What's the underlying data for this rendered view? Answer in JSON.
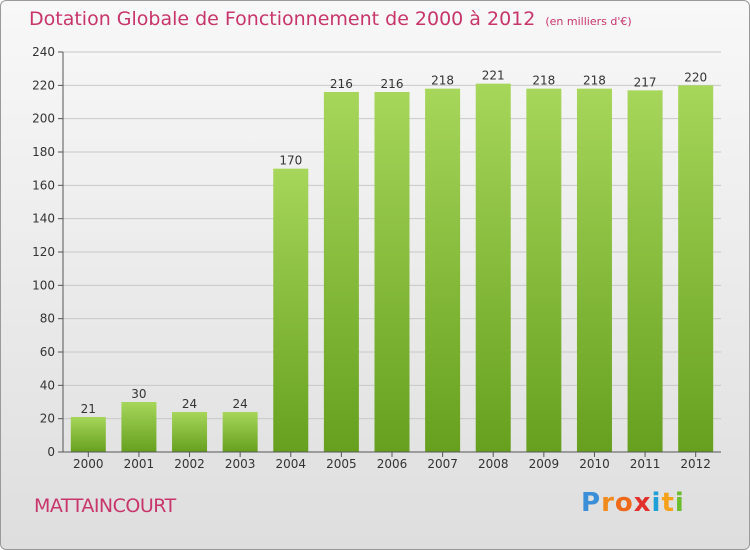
{
  "header": {
    "title": "Dotation Globale de Fonctionnement de 2000 à 2012",
    "unit": "(en milliers d'€)"
  },
  "footer": {
    "commune": "MATTAINCOURT",
    "logo_letters": [
      "P",
      "r",
      "o",
      "x",
      "i",
      "t",
      "i"
    ]
  },
  "colors": {
    "bar_light": "#a6d65a",
    "bar_dark": "#66a01e",
    "title": "#c8356b",
    "gridline": "#c8c8c8"
  },
  "chart_data": {
    "type": "bar",
    "title": "Dotation Globale de Fonctionnement de 2000 à 2012",
    "subtitle": "(en milliers d'€)",
    "categories": [
      "2000",
      "2001",
      "2002",
      "2003",
      "2004",
      "2005",
      "2006",
      "2007",
      "2008",
      "2009",
      "2010",
      "2011",
      "2012"
    ],
    "values": [
      21,
      30,
      24,
      24,
      170,
      216,
      216,
      218,
      221,
      218,
      218,
      217,
      220
    ],
    "data_labels": [
      "21",
      "30",
      "24",
      "24",
      "170",
      "216",
      "216",
      "218",
      "221",
      "218",
      "218",
      "217",
      "220"
    ],
    "ylim": [
      0,
      240
    ],
    "yticks": [
      0,
      20,
      40,
      60,
      80,
      100,
      120,
      140,
      160,
      180,
      200,
      220,
      240
    ],
    "xlabel": "",
    "ylabel": "",
    "grid": true
  }
}
